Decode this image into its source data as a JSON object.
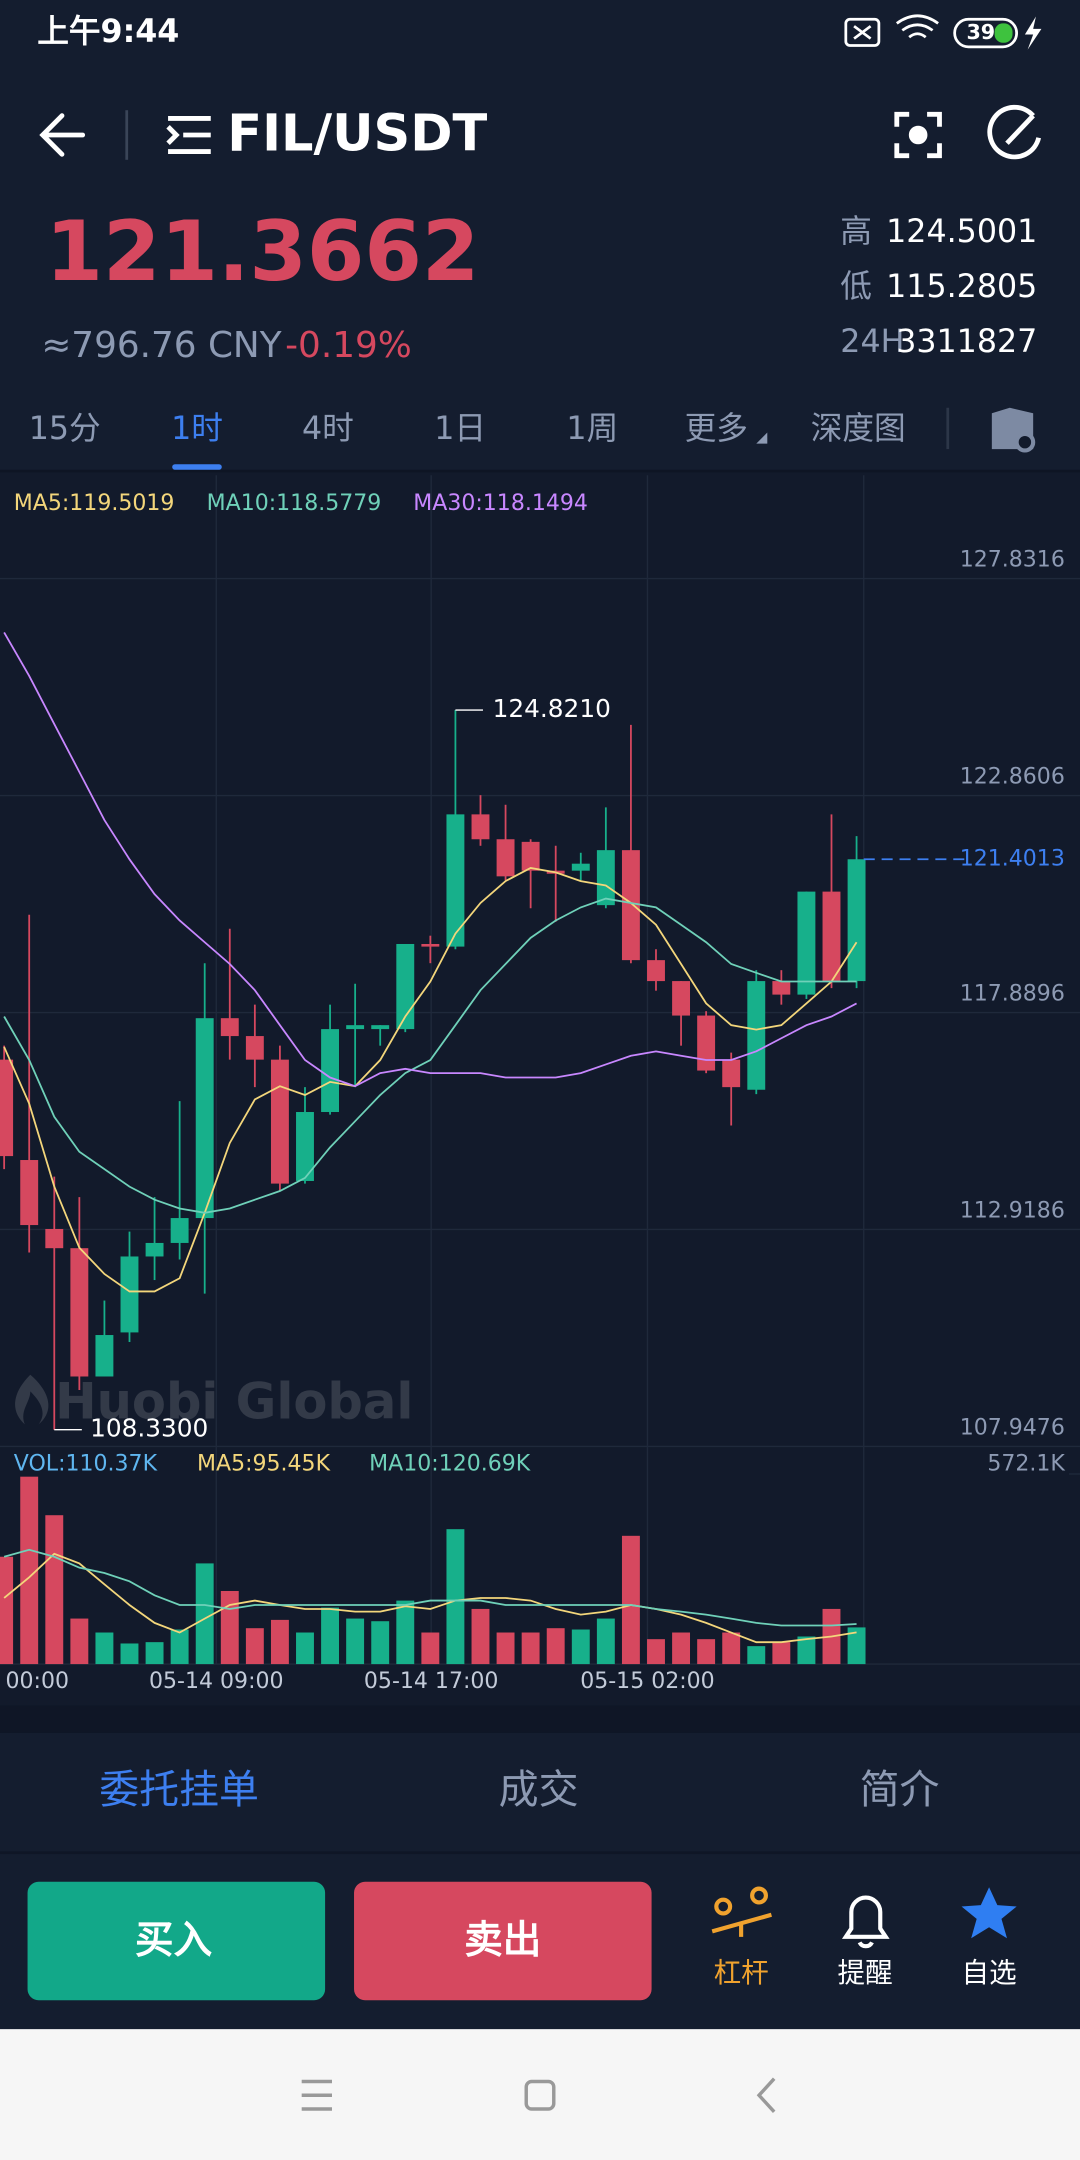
{
  "status_bar": {
    "time": "上午9:44",
    "battery": "39"
  },
  "header": {
    "pair": "FIL/USDT"
  },
  "ticker": {
    "price": "121.3662",
    "cny": "≈796.76 CNY",
    "change": "-0.19%",
    "stats": [
      {
        "label": "高",
        "value": "124.5001"
      },
      {
        "label": "低",
        "value": "115.2805"
      },
      {
        "label": "24H",
        "value": "3311827"
      }
    ]
  },
  "tabs": {
    "items": [
      "15分",
      "1时",
      "4时",
      "1日",
      "1周",
      "更多",
      "深度图"
    ],
    "active": 1
  },
  "chart_data": {
    "type": "candlestick",
    "up_color": "#17b08b",
    "down_color": "#d6485f",
    "ylim": [
      107.9476,
      130.2
    ],
    "yticks": [
      127.8316,
      122.8606,
      117.8896,
      112.9186,
      107.9476
    ],
    "grid": true,
    "last_price": 121.4013,
    "high_marker": {
      "value": 124.821,
      "label": "124.8210"
    },
    "low_marker": {
      "value": 108.33,
      "label": "108.3300"
    },
    "watermark": "Huobi Global",
    "xticks": [
      "00:00",
      "05-14 09:00",
      "05-14 17:00",
      "05-15 02:00"
    ],
    "candles": [
      {
        "o": 116.81,
        "h": 117.13,
        "l": 114.3,
        "c": 114.6
      },
      {
        "o": 114.51,
        "h": 120.13,
        "l": 112.39,
        "c": 113.02
      },
      {
        "o": 112.93,
        "h": 114.13,
        "l": 108.33,
        "c": 112.49
      },
      {
        "o": 112.49,
        "h": 113.66,
        "l": 109.24,
        "c": 109.55
      },
      {
        "o": 109.55,
        "h": 111.29,
        "l": 109.55,
        "c": 110.5
      },
      {
        "o": 110.56,
        "h": 112.87,
        "l": 110.34,
        "c": 112.3
      },
      {
        "o": 112.3,
        "h": 113.66,
        "l": 111.76,
        "c": 112.61
      },
      {
        "o": 112.61,
        "h": 115.86,
        "l": 112.23,
        "c": 113.18
      },
      {
        "o": 113.18,
        "h": 119.02,
        "l": 111.45,
        "c": 117.76
      },
      {
        "o": 117.76,
        "h": 119.81,
        "l": 116.81,
        "c": 117.35
      },
      {
        "o": 117.35,
        "h": 118.07,
        "l": 116.18,
        "c": 116.81
      },
      {
        "o": 116.81,
        "h": 117.13,
        "l": 113.81,
        "c": 113.97
      },
      {
        "o": 114.03,
        "h": 116.18,
        "l": 113.97,
        "c": 115.61
      },
      {
        "o": 115.61,
        "h": 118.07,
        "l": 115.55,
        "c": 117.51
      },
      {
        "o": 117.51,
        "h": 118.55,
        "l": 116.18,
        "c": 117.6
      },
      {
        "o": 117.51,
        "h": 117.6,
        "l": 117.13,
        "c": 117.6
      },
      {
        "o": 117.51,
        "h": 119.46,
        "l": 117.44,
        "c": 119.46
      },
      {
        "o": 119.46,
        "h": 119.65,
        "l": 119.02,
        "c": 119.4
      },
      {
        "o": 119.4,
        "h": 124.821,
        "l": 119.34,
        "c": 122.43
      },
      {
        "o": 122.43,
        "h": 122.87,
        "l": 121.71,
        "c": 121.86
      },
      {
        "o": 121.86,
        "h": 122.65,
        "l": 120.92,
        "c": 121.01
      },
      {
        "o": 121.8,
        "h": 121.86,
        "l": 120.28,
        "c": 121.14
      },
      {
        "o": 121.14,
        "h": 121.71,
        "l": 119.97,
        "c": 121.07
      },
      {
        "o": 121.14,
        "h": 121.55,
        "l": 120.92,
        "c": 121.3
      },
      {
        "o": 120.35,
        "h": 122.59,
        "l": 120.28,
        "c": 121.61
      },
      {
        "o": 121.61,
        "h": 124.48,
        "l": 119.02,
        "c": 119.09
      },
      {
        "o": 119.09,
        "h": 119.34,
        "l": 118.39,
        "c": 118.61
      },
      {
        "o": 118.61,
        "h": 118.61,
        "l": 117.13,
        "c": 117.82
      },
      {
        "o": 117.82,
        "h": 117.92,
        "l": 116.5,
        "c": 116.56
      },
      {
        "o": 116.81,
        "h": 116.97,
        "l": 115.3,
        "c": 116.18
      },
      {
        "o": 116.12,
        "h": 118.86,
        "l": 116.02,
        "c": 118.61
      },
      {
        "o": 118.61,
        "h": 118.86,
        "l": 118.07,
        "c": 118.3
      },
      {
        "o": 118.3,
        "h": 120.66,
        "l": 118.2,
        "c": 120.66
      },
      {
        "o": 120.66,
        "h": 122.43,
        "l": 118.45,
        "c": 118.61
      },
      {
        "o": 118.61,
        "h": 121.93,
        "l": 118.45,
        "c": 121.4013
      }
    ],
    "series": [
      {
        "name": "MA5:119.5019",
        "color": "#f3d67b",
        "values": [
          117.1,
          115.8,
          113.9,
          112.5,
          111.9,
          111.5,
          111.5,
          111.8,
          113.3,
          114.9,
          115.9,
          116.2,
          116.0,
          116.3,
          116.2,
          116.8,
          117.8,
          118.6,
          119.7,
          120.4,
          120.9,
          121.2,
          121.1,
          120.9,
          120.8,
          120.4,
          119.9,
          119.0,
          118.1,
          117.6,
          117.5,
          117.6,
          118.1,
          118.6,
          119.5
        ]
      },
      {
        "name": "MA10:118.5779",
        "color": "#6fd1b9",
        "values": [
          117.8,
          116.8,
          115.5,
          114.7,
          114.3,
          113.9,
          113.6,
          113.4,
          113.3,
          113.4,
          113.6,
          113.8,
          114.1,
          114.8,
          115.4,
          116.0,
          116.5,
          116.8,
          117.6,
          118.4,
          119.0,
          119.6,
          120.0,
          120.3,
          120.5,
          120.4,
          120.3,
          119.9,
          119.5,
          119.0,
          118.8,
          118.6,
          118.6,
          118.6,
          118.6
        ]
      },
      {
        "name": "MA30:118.1494",
        "color": "#c887ff",
        "values": [
          126.6,
          125.6,
          124.5,
          123.4,
          122.3,
          121.4,
          120.6,
          120.0,
          119.5,
          119.0,
          118.4,
          117.6,
          116.8,
          116.4,
          116.2,
          116.5,
          116.6,
          116.5,
          116.5,
          116.5,
          116.4,
          116.4,
          116.4,
          116.5,
          116.7,
          116.9,
          117.0,
          116.9,
          116.8,
          116.8,
          117.0,
          117.3,
          117.6,
          117.8,
          118.1
        ]
      }
    ],
    "volume": {
      "label": "VOL:110.37K",
      "label_color": "#5fb6f0",
      "ylim": [
        0,
        572.1
      ],
      "yticks": [
        {
          "value": 572.1,
          "label": "572.1K"
        }
      ],
      "values": [
        323,
        564,
        448,
        137,
        95,
        62,
        66,
        104,
        303,
        220,
        108,
        133,
        95,
        170,
        137,
        129,
        191,
        95,
        406,
        166,
        95,
        95,
        108,
        104,
        137,
        386,
        75,
        95,
        75,
        95,
        54,
        66,
        83,
        166,
        110.37
      ],
      "series": [
        {
          "name": "MA5:95.45K",
          "color": "#f3d67b",
          "values": [
            199,
            261,
            332,
            303,
            240,
            178,
            124,
            95,
            137,
            178,
            191,
            178,
            166,
            166,
            158,
            158,
            174,
            166,
            191,
            199,
            199,
            191,
            166,
            149,
            158,
            178,
            166,
            149,
            124,
            95,
            66,
            66,
            75,
            83,
            95.45
          ]
        },
        {
          "name": "MA10:120.69K",
          "color": "#6fd1b9",
          "values": [
            323,
            344,
            323,
            290,
            274,
            249,
            207,
            178,
            178,
            166,
            178,
            178,
            178,
            178,
            178,
            178,
            178,
            191,
            191,
            191,
            178,
            178,
            178,
            178,
            178,
            178,
            166,
            158,
            149,
            137,
            124,
            116,
            116,
            116,
            120.69
          ]
        }
      ]
    }
  },
  "order_tabs": {
    "items": [
      "委托挂单",
      "成交",
      "简介"
    ],
    "active": 0
  },
  "actions": {
    "buy": "买入",
    "sell": "卖出"
  },
  "shortcuts": [
    "杠杆",
    "提醒",
    "自选"
  ]
}
